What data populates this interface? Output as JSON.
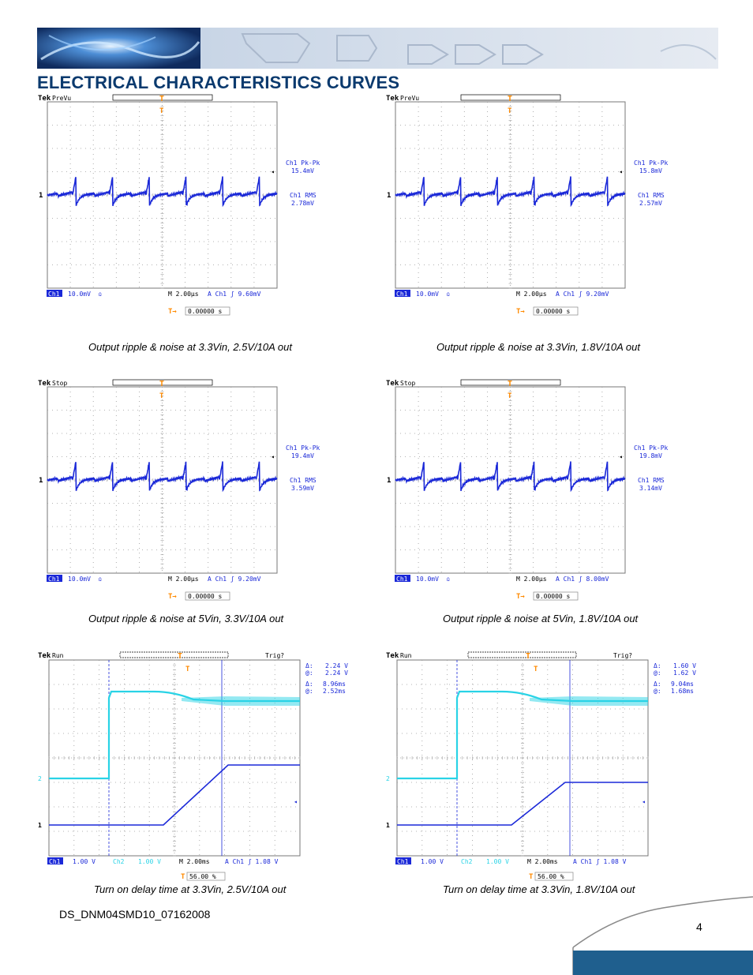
{
  "header": {
    "title": "ELECTRICAL CHARACTERISTICS CURVES"
  },
  "footer": {
    "doc_id": "DS_DNM04SMD10_07162008",
    "page_number": "4"
  },
  "colors": {
    "ch1": "#1a28d8",
    "ch2": "#29d3e6",
    "trigger": "#ff8a00",
    "grid": "#9a9a9a",
    "title": "#0b3a6e"
  },
  "scopes": [
    {
      "id": "s1",
      "kind": "ripple",
      "tek": "Tek",
      "mode": "PreVu",
      "m1_label": "Ch1 Pk-Pk",
      "m1_value": "15.4mV",
      "m2_label": "Ch1 RMS",
      "m2_value": "2.78mV",
      "ch1_badge": "Ch1",
      "ch1_scale": "10.0mV",
      "ch1_coupling": "Ω",
      "timebase": "M 2.00μs",
      "trig_info": "A  Ch1  ʃ  9.60mV",
      "trig_pos": "0.00000 s",
      "caption": "Output ripple & noise at 3.3Vin, 2.5V/10A out",
      "chart_data": {
        "type": "line",
        "series": [
          {
            "name": "Ch1",
            "values": []
          }
        ],
        "peak_to_peak_mV": 15.4,
        "rms_mV": 2.78,
        "period_us": 3.1
      }
    },
    {
      "id": "s2",
      "kind": "ripple",
      "tek": "Tek",
      "mode": "PreVu",
      "m1_label": "Ch1 Pk-Pk",
      "m1_value": "15.8mV",
      "m2_label": "Ch1 RMS",
      "m2_value": "2.57mV",
      "ch1_badge": "Ch1",
      "ch1_scale": "10.0mV",
      "ch1_coupling": "Ω",
      "timebase": "M 2.00μs",
      "trig_info": "A  Ch1  ʃ  9.20mV",
      "trig_pos": "0.00000 s",
      "caption": "Output ripple & noise at 3.3Vin, 1.8V/10A out",
      "chart_data": {
        "type": "line",
        "peak_to_peak_mV": 15.8,
        "rms_mV": 2.57,
        "period_us": 3.1
      }
    },
    {
      "id": "s3",
      "kind": "ripple",
      "tek": "Tek",
      "mode": "Stop",
      "m1_label": "Ch1 Pk-Pk",
      "m1_value": "19.4mV",
      "m2_label": "Ch1 RMS",
      "m2_value": "3.59mV",
      "ch1_badge": "Ch1",
      "ch1_scale": "10.0mV",
      "ch1_coupling": "Ω",
      "timebase": "M 2.00μs",
      "trig_info": "A  Ch1  ʃ  9.20mV",
      "trig_pos": "0.00000 s",
      "caption": "Output ripple & noise at 5Vin, 3.3V/10A out",
      "chart_data": {
        "type": "line",
        "peak_to_peak_mV": 19.4,
        "rms_mV": 3.59,
        "period_us": 3.1
      }
    },
    {
      "id": "s4",
      "kind": "ripple",
      "tek": "Tek",
      "mode": "Stop",
      "m1_label": "Ch1 Pk-Pk",
      "m1_value": "19.8mV",
      "m2_label": "Ch1 RMS",
      "m2_value": "3.14mV",
      "ch1_badge": "Ch1",
      "ch1_scale": "10.0mV",
      "ch1_coupling": "Ω",
      "timebase": "M 2.00μs",
      "trig_info": "A  Ch1  ʃ  8.00mV",
      "trig_pos": "0.00000 s",
      "caption": "Output ripple & noise at 5Vin, 1.8V/10A out",
      "chart_data": {
        "type": "line",
        "peak_to_peak_mV": 19.8,
        "rms_mV": 3.14,
        "period_us": 3.1
      }
    },
    {
      "id": "s5",
      "kind": "turnon",
      "tek": "Tek",
      "mode": "Run",
      "trig_status": "Trig?",
      "delta_v_label": "Δ:",
      "delta_v": "2.24 V",
      "at_v_label": "@:",
      "at_v": "2.24 V",
      "delta_t_label": "Δ:",
      "delta_t": "8.96ms",
      "at_t_label": "@:",
      "at_t": "2.52ms",
      "ch1_badge": "Ch1",
      "ch1_scale": "1.00 V",
      "ch2_badge": "Ch2",
      "ch2_scale": "1.00 V",
      "timebase": "M 2.00ms",
      "trig_info": "A  Ch1  ʃ  1.08 V",
      "trig_pos": "56.00 %",
      "caption": "Turn on delay time at 3.3Vin, 2.5V/10A out",
      "chart_data": {
        "type": "line",
        "output_final_V": 2.5,
        "rise_start_ms": 5.8,
        "rise_end_ms": 9.0
      }
    },
    {
      "id": "s6",
      "kind": "turnon",
      "tek": "Tek",
      "mode": "Run",
      "trig_status": "Trig?",
      "delta_v_label": "Δ:",
      "delta_v": "1.60 V",
      "at_v_label": "@:",
      "at_v": "1.62 V",
      "delta_t_label": "Δ:",
      "delta_t": "9.04ms",
      "at_t_label": "@:",
      "at_t": "1.68ms",
      "ch1_badge": "Ch1",
      "ch1_scale": "1.00 V",
      "ch2_badge": "Ch2",
      "ch2_scale": "1.00 V",
      "timebase": "M 2.00ms",
      "trig_info": "A  Ch1  ʃ  1.08 V",
      "trig_pos": "56.00 %",
      "caption": "Turn on delay time at 3.3Vin, 1.8V/10A out",
      "chart_data": {
        "type": "line",
        "output_final_V": 1.8,
        "rise_start_ms": 5.8,
        "rise_end_ms": 8.8
      }
    }
  ]
}
